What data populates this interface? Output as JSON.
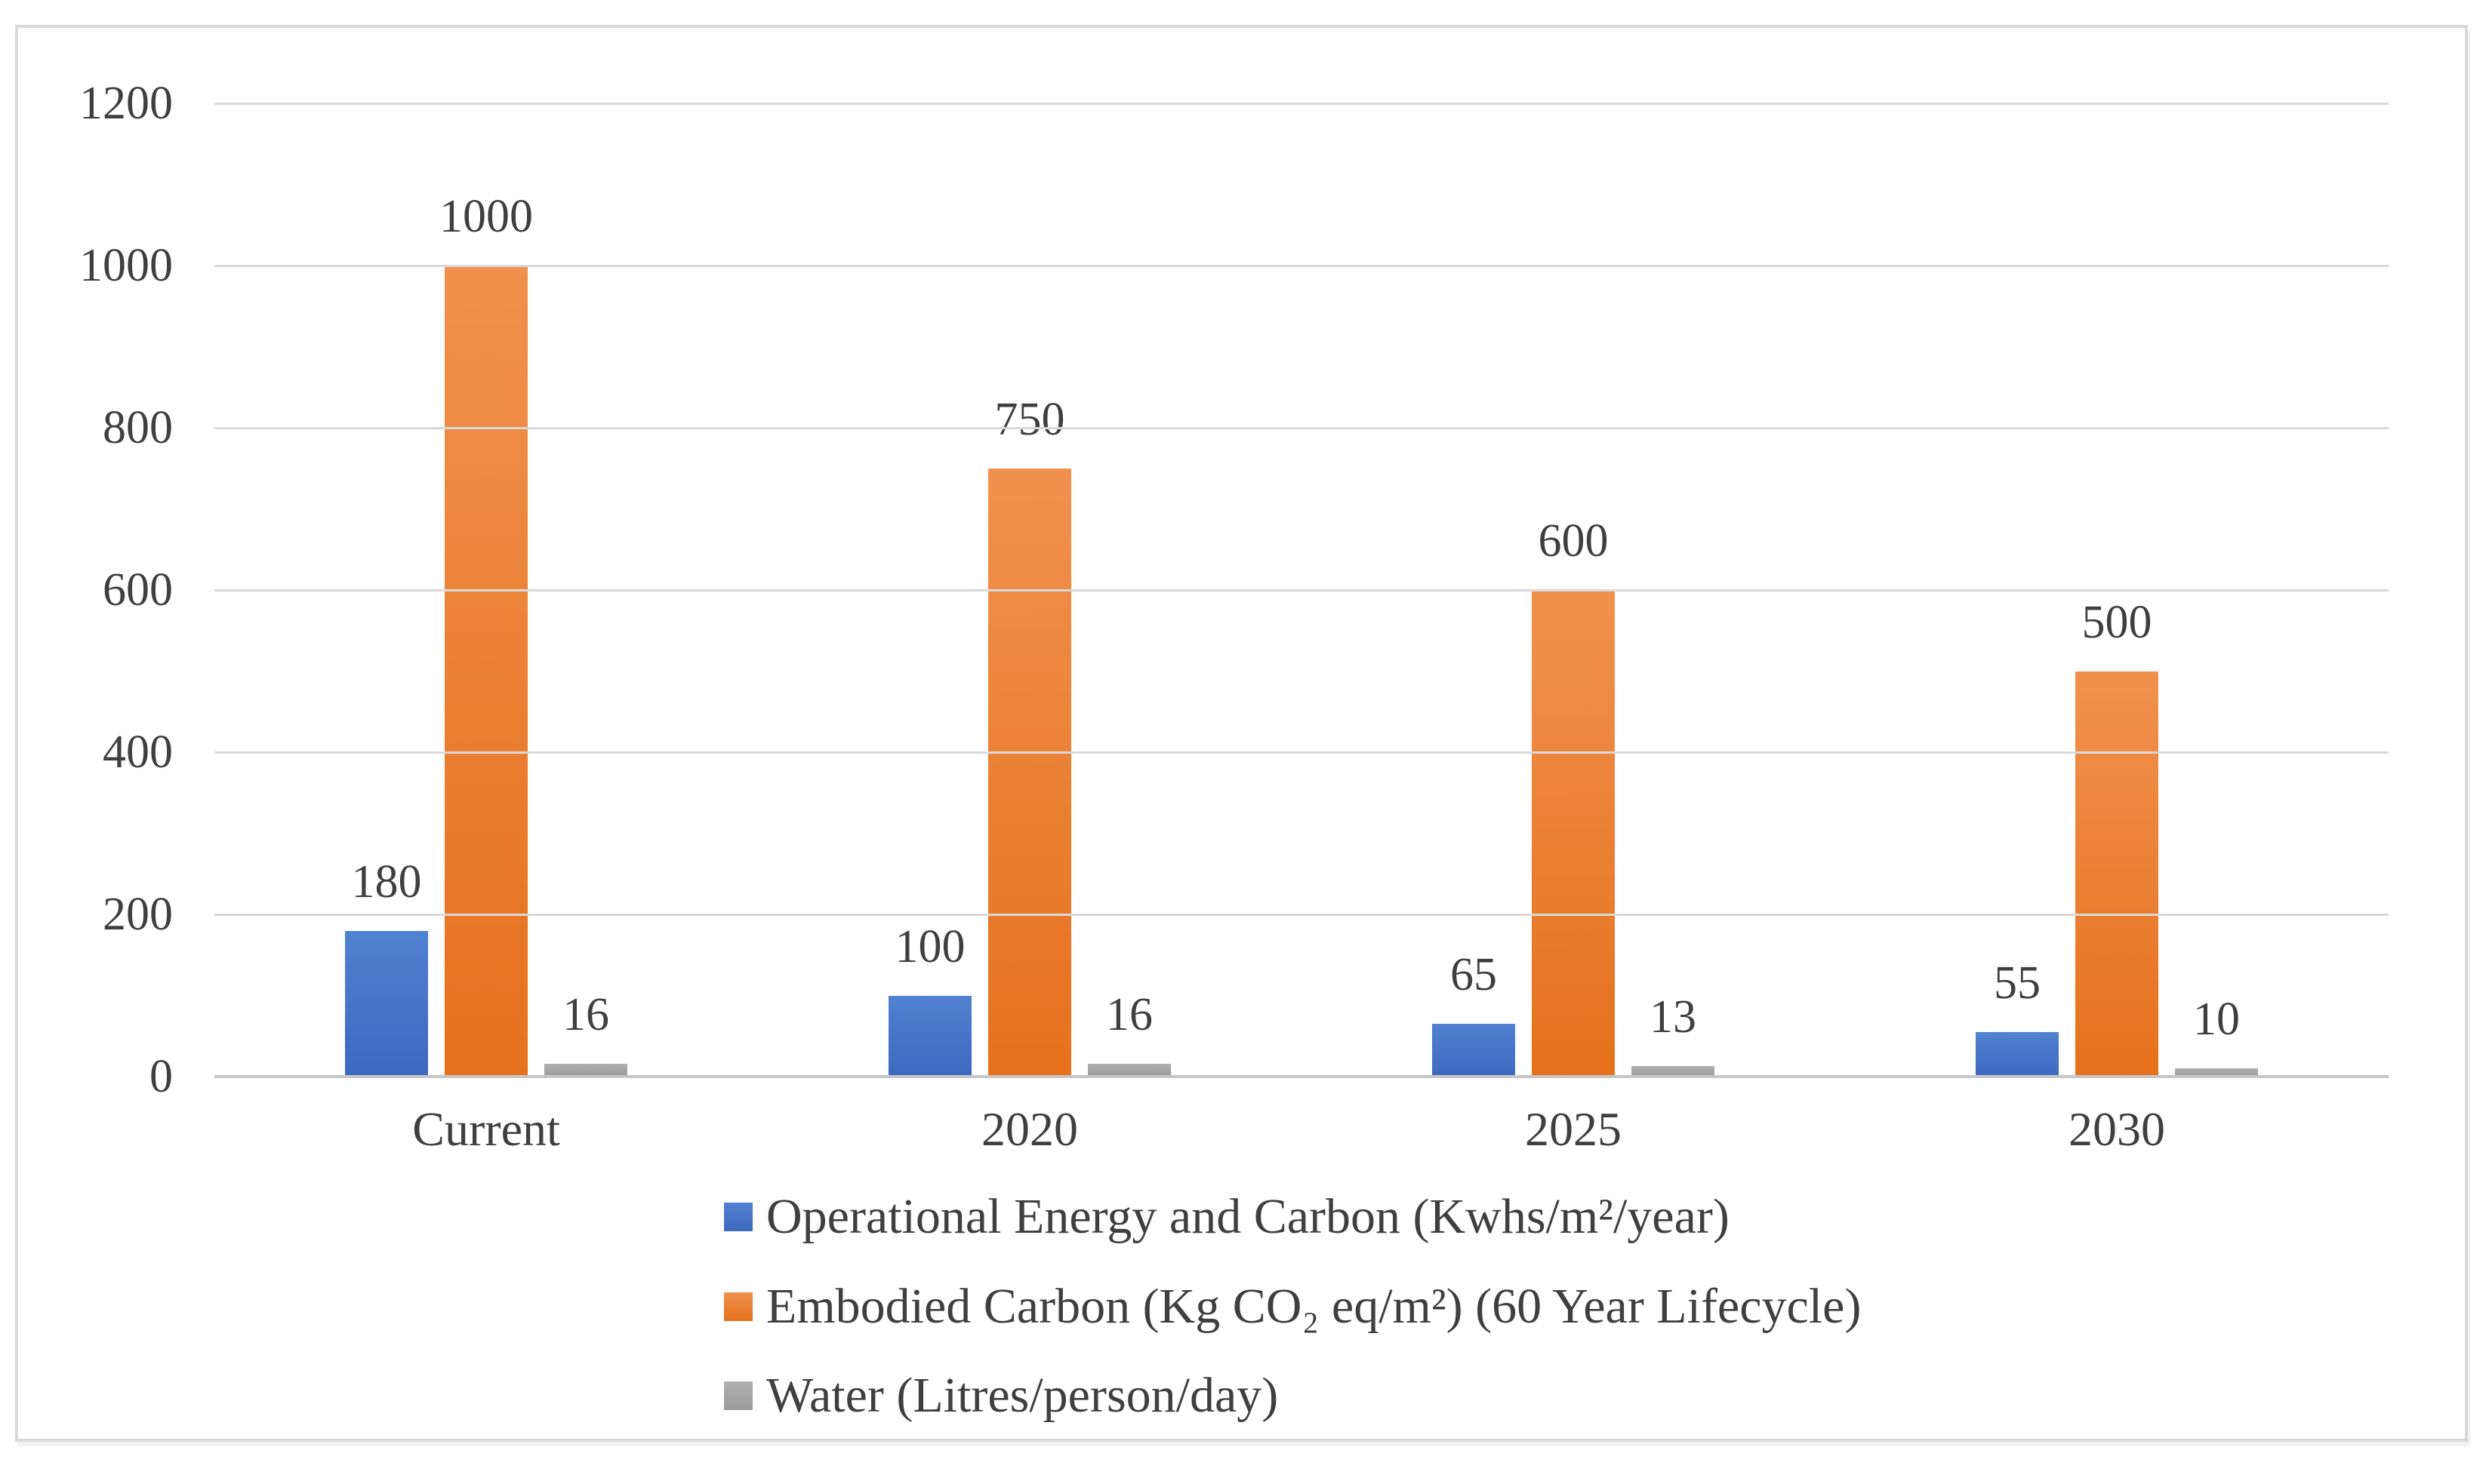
{
  "chart_data": {
    "type": "bar",
    "title": "",
    "xlabel": "",
    "ylabel": "",
    "categories": [
      "Current",
      "2020",
      "2025",
      "2030"
    ],
    "series": [
      {
        "name": "Operational Energy and Carbon (Kwhs/m²/year)",
        "values": [
          180,
          100,
          65,
          55
        ],
        "color": "#4472C4",
        "color_top": "#5181D1",
        "color_bottom": "#3C69BE"
      },
      {
        "name": "Embodied Carbon (Kg CO₂ eq/m²) (60 Year Lifecycle)",
        "values": [
          1000,
          750,
          600,
          500
        ],
        "color": "#ED7D31",
        "color_top": "#F0914E",
        "color_bottom": "#E6711C"
      },
      {
        "name": "Water (Litres/person/day)",
        "values": [
          16,
          16,
          13,
          10
        ],
        "color": "#A5A5A5",
        "color_top": "#B0B0B0",
        "color_bottom": "#9B9B9B"
      }
    ],
    "yticks": [
      0,
      200,
      400,
      600,
      800,
      1000,
      1200
    ],
    "ylim": [
      0,
      1200
    ],
    "grid": true,
    "data_labels": true,
    "legend_position": "bottom-left",
    "gridline_color": "#d9d9d9",
    "axis_line_color": "#c6c6c6",
    "text_color": "#3f3f3f",
    "frame_border_color": "#d9d9d9"
  }
}
